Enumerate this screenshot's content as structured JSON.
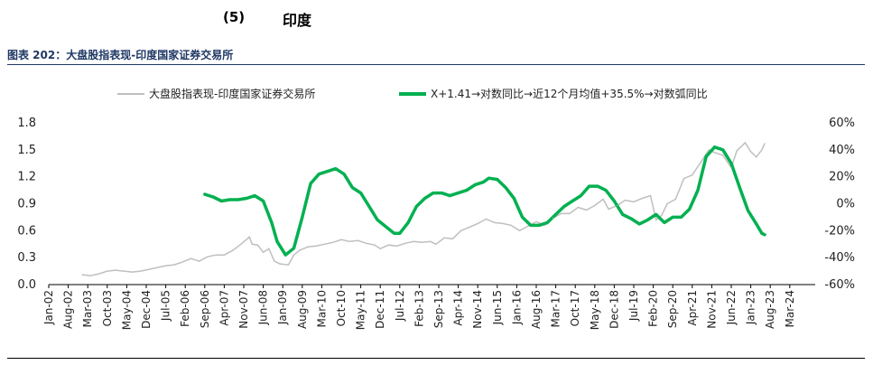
{
  "heading": {
    "number": "(5)",
    "title": "印度"
  },
  "figure": {
    "caption": "图表 202：大盘股指表现-印度国家证券交易所"
  },
  "chart_data": {
    "type": "line",
    "left_axis": {
      "range": [
        0,
        1.8
      ],
      "ticks": [
        "0.0",
        "0.3",
        "0.6",
        "0.9",
        "1.2",
        "1.5",
        "1.8"
      ]
    },
    "right_axis": {
      "range": [
        -60,
        60
      ],
      "ticks": [
        "-60%",
        "-40%",
        "-20%",
        "0%",
        "20%",
        "40%",
        "60%"
      ]
    },
    "x_ticks": [
      "Jan-02",
      "Aug-02",
      "Mar-03",
      "Oct-03",
      "May-04",
      "Dec-04",
      "Jul-05",
      "Feb-06",
      "Sep-06",
      "Apr-07",
      "Nov-07",
      "Jun-08",
      "Jan-09",
      "Aug-09",
      "Mar-10",
      "Oct-10",
      "May-11",
      "Dec-11",
      "Jul-12",
      "Feb-13",
      "Sep-13",
      "Apr-14",
      "Nov-14",
      "Jun-15",
      "Jan-16",
      "Aug-16",
      "Mar-17",
      "Oct-17",
      "May-18",
      "Dec-18",
      "Jul-19",
      "Feb-20",
      "Sep-20",
      "Apr-21",
      "Nov-21",
      "Jun-22",
      "Jan-23",
      "Aug-23",
      "Mar-24"
    ],
    "grid": false,
    "legend_position": "top",
    "series": [
      {
        "name": "大盘股指表现-印度国家证券交易所",
        "axis": "left",
        "color": "#bfbfbf",
        "points": [
          [
            "2003-01",
            0.11
          ],
          [
            "2003-04",
            0.1
          ],
          [
            "2003-07",
            0.12
          ],
          [
            "2003-10",
            0.15
          ],
          [
            "2004-01",
            0.16
          ],
          [
            "2004-04",
            0.15
          ],
          [
            "2004-07",
            0.14
          ],
          [
            "2004-10",
            0.15
          ],
          [
            "2005-01",
            0.17
          ],
          [
            "2005-04",
            0.19
          ],
          [
            "2005-07",
            0.21
          ],
          [
            "2005-10",
            0.22
          ],
          [
            "2006-01",
            0.25
          ],
          [
            "2006-04",
            0.29
          ],
          [
            "2006-07",
            0.26
          ],
          [
            "2006-10",
            0.31
          ],
          [
            "2007-01",
            0.33
          ],
          [
            "2007-04",
            0.33
          ],
          [
            "2007-07",
            0.38
          ],
          [
            "2007-10",
            0.45
          ],
          [
            "2008-01",
            0.53
          ],
          [
            "2008-02",
            0.45
          ],
          [
            "2008-04",
            0.44
          ],
          [
            "2008-06",
            0.36
          ],
          [
            "2008-08",
            0.4
          ],
          [
            "2008-10",
            0.26
          ],
          [
            "2008-12",
            0.23
          ],
          [
            "2009-03",
            0.22
          ],
          [
            "2009-05",
            0.33
          ],
          [
            "2009-07",
            0.38
          ],
          [
            "2009-10",
            0.42
          ],
          [
            "2010-01",
            0.43
          ],
          [
            "2010-04",
            0.45
          ],
          [
            "2010-07",
            0.47
          ],
          [
            "2010-10",
            0.5
          ],
          [
            "2011-01",
            0.48
          ],
          [
            "2011-04",
            0.49
          ],
          [
            "2011-07",
            0.46
          ],
          [
            "2011-10",
            0.44
          ],
          [
            "2011-12",
            0.4
          ],
          [
            "2012-03",
            0.44
          ],
          [
            "2012-06",
            0.43
          ],
          [
            "2012-09",
            0.46
          ],
          [
            "2012-12",
            0.48
          ],
          [
            "2013-03",
            0.47
          ],
          [
            "2013-06",
            0.48
          ],
          [
            "2013-08",
            0.45
          ],
          [
            "2013-11",
            0.52
          ],
          [
            "2014-02",
            0.51
          ],
          [
            "2014-05",
            0.6
          ],
          [
            "2014-08",
            0.64
          ],
          [
            "2014-11",
            0.68
          ],
          [
            "2015-02",
            0.73
          ],
          [
            "2015-05",
            0.69
          ],
          [
            "2015-08",
            0.68
          ],
          [
            "2015-11",
            0.66
          ],
          [
            "2016-02",
            0.6
          ],
          [
            "2016-05",
            0.65
          ],
          [
            "2016-08",
            0.7
          ],
          [
            "2016-11",
            0.66
          ],
          [
            "2017-02",
            0.74
          ],
          [
            "2017-05",
            0.79
          ],
          [
            "2017-08",
            0.79
          ],
          [
            "2017-11",
            0.86
          ],
          [
            "2018-02",
            0.83
          ],
          [
            "2018-05",
            0.88
          ],
          [
            "2018-08",
            0.95
          ],
          [
            "2018-10",
            0.84
          ],
          [
            "2019-01",
            0.88
          ],
          [
            "2019-04",
            0.94
          ],
          [
            "2019-07",
            0.92
          ],
          [
            "2019-10",
            0.96
          ],
          [
            "2020-01",
            0.99
          ],
          [
            "2020-03",
            0.72
          ],
          [
            "2020-05",
            0.77
          ],
          [
            "2020-07",
            0.9
          ],
          [
            "2020-10",
            0.95
          ],
          [
            "2021-01",
            1.18
          ],
          [
            "2021-04",
            1.22
          ],
          [
            "2021-07",
            1.36
          ],
          [
            "2021-10",
            1.5
          ],
          [
            "2021-12",
            1.47
          ],
          [
            "2022-03",
            1.44
          ],
          [
            "2022-06",
            1.3
          ],
          [
            "2022-08",
            1.49
          ],
          [
            "2022-11",
            1.58
          ],
          [
            "2023-01",
            1.48
          ],
          [
            "2023-03",
            1.42
          ],
          [
            "2023-05",
            1.5
          ],
          [
            "2023-06",
            1.57
          ]
        ]
      },
      {
        "name": "X+1.41→对数同比→近12个月均值+35.5%→对数弧同比",
        "axis": "right",
        "color": "#00b050",
        "points": [
          [
            "2006-09",
            7
          ],
          [
            "2006-12",
            5
          ],
          [
            "2007-03",
            2
          ],
          [
            "2007-06",
            3
          ],
          [
            "2007-09",
            3
          ],
          [
            "2007-12",
            4
          ],
          [
            "2008-03",
            6
          ],
          [
            "2008-06",
            2
          ],
          [
            "2008-09",
            -14
          ],
          [
            "2008-11",
            -28
          ],
          [
            "2009-02",
            -38
          ],
          [
            "2009-05",
            -33
          ],
          [
            "2009-08",
            -10
          ],
          [
            "2009-11",
            15
          ],
          [
            "2010-02",
            22
          ],
          [
            "2010-05",
            24
          ],
          [
            "2010-08",
            26
          ],
          [
            "2010-11",
            22
          ],
          [
            "2011-02",
            12
          ],
          [
            "2011-05",
            8
          ],
          [
            "2011-08",
            -2
          ],
          [
            "2011-11",
            -12
          ],
          [
            "2012-02",
            -17
          ],
          [
            "2012-05",
            -22
          ],
          [
            "2012-07",
            -22
          ],
          [
            "2012-10",
            -14
          ],
          [
            "2013-01",
            -2
          ],
          [
            "2013-04",
            4
          ],
          [
            "2013-07",
            8
          ],
          [
            "2013-10",
            8
          ],
          [
            "2014-01",
            6
          ],
          [
            "2014-04",
            8
          ],
          [
            "2014-07",
            10
          ],
          [
            "2014-10",
            14
          ],
          [
            "2015-01",
            16
          ],
          [
            "2015-03",
            19
          ],
          [
            "2015-06",
            18
          ],
          [
            "2015-09",
            12
          ],
          [
            "2015-12",
            4
          ],
          [
            "2016-03",
            -10
          ],
          [
            "2016-06",
            -16
          ],
          [
            "2016-09",
            -16
          ],
          [
            "2016-12",
            -14
          ],
          [
            "2017-03",
            -8
          ],
          [
            "2017-06",
            -2
          ],
          [
            "2017-09",
            2
          ],
          [
            "2017-12",
            6
          ],
          [
            "2018-03",
            13
          ],
          [
            "2018-06",
            13
          ],
          [
            "2018-09",
            10
          ],
          [
            "2018-12",
            2
          ],
          [
            "2019-03",
            -8
          ],
          [
            "2019-06",
            -11
          ],
          [
            "2019-09",
            -15
          ],
          [
            "2019-12",
            -12
          ],
          [
            "2020-03",
            -8
          ],
          [
            "2020-06",
            -14
          ],
          [
            "2020-09",
            -10
          ],
          [
            "2020-12",
            -10
          ],
          [
            "2021-03",
            -4
          ],
          [
            "2021-06",
            10
          ],
          [
            "2021-09",
            35
          ],
          [
            "2021-12",
            42
          ],
          [
            "2022-03",
            40
          ],
          [
            "2022-06",
            30
          ],
          [
            "2022-09",
            12
          ],
          [
            "2022-12",
            -5
          ],
          [
            "2023-03",
            -15
          ],
          [
            "2023-05",
            -22
          ],
          [
            "2023-06",
            -23
          ]
        ]
      }
    ]
  }
}
